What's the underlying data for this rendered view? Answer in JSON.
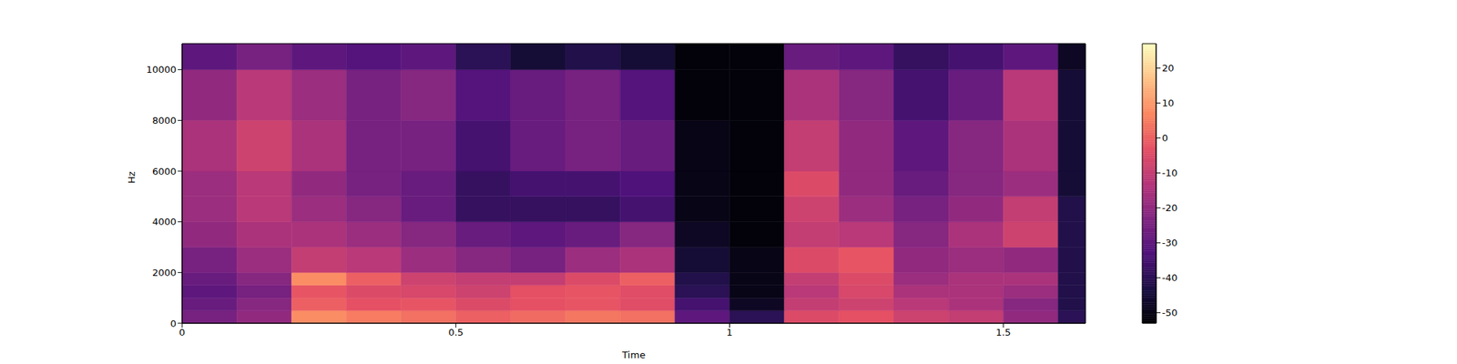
{
  "chart_data": {
    "type": "heatmap",
    "x_label": "Time",
    "y_label": "Hz",
    "xlim": [
      0,
      1.65
    ],
    "ylim": [
      0,
      11025
    ],
    "xticks": [
      0,
      0.5,
      1,
      1.5
    ],
    "yticks": [
      0,
      2000,
      4000,
      6000,
      8000,
      10000
    ],
    "color": "magma",
    "x_edges": [
      0,
      0.1,
      0.2,
      0.3,
      0.4,
      0.5,
      0.6,
      0.7,
      0.8,
      0.9,
      1.0,
      1.1,
      1.2,
      1.3,
      1.4,
      1.5,
      1.6,
      1.65
    ],
    "y_edges": [
      0,
      500,
      1000,
      1500,
      2000,
      3000,
      4000,
      5000,
      6000,
      8000,
      10000,
      11025
    ],
    "cells": [
      [
        -25,
        -20,
        8,
        5,
        3,
        0,
        2,
        4,
        3,
        -30,
        -40,
        -5,
        -3,
        -8,
        -10,
        -20,
        -40
      ],
      [
        -28,
        -22,
        0,
        -3,
        -2,
        -5,
        -3,
        -2,
        -4,
        -35,
        -48,
        -10,
        -8,
        -12,
        -15,
        -22,
        -42
      ],
      [
        -30,
        -25,
        -2,
        -5,
        -6,
        -8,
        -3,
        -2,
        -4,
        -40,
        -50,
        -12,
        -6,
        -15,
        -15,
        -18,
        -42
      ],
      [
        -28,
        -22,
        8,
        0,
        -8,
        -10,
        -10,
        -5,
        0,
        -42,
        -50,
        -10,
        -5,
        -18,
        -15,
        -15,
        -42
      ],
      [
        -25,
        -18,
        -10,
        -12,
        -18,
        -22,
        -25,
        -18,
        -15,
        -45,
        -50,
        -5,
        -2,
        -20,
        -18,
        -20,
        -42
      ],
      [
        -20,
        -15,
        -15,
        -18,
        -22,
        -28,
        -30,
        -28,
        -22,
        -48,
        -52,
        -10,
        -12,
        -22,
        -15,
        -8,
        -42
      ],
      [
        -18,
        -12,
        -18,
        -22,
        -28,
        -38,
        -38,
        -38,
        -35,
        -50,
        -52,
        -8,
        -18,
        -25,
        -20,
        -10,
        -42
      ],
      [
        -18,
        -12,
        -20,
        -25,
        -28,
        -38,
        -35,
        -35,
        -33,
        -50,
        -52,
        -5,
        -20,
        -28,
        -22,
        -18,
        -45
      ],
      [
        -15,
        -8,
        -15,
        -25,
        -25,
        -35,
        -28,
        -25,
        -28,
        -50,
        -52,
        -10,
        -20,
        -30,
        -22,
        -15,
        -45
      ],
      [
        -20,
        -12,
        -18,
        -25,
        -22,
        -32,
        -28,
        -25,
        -32,
        -52,
        -52,
        -15,
        -22,
        -35,
        -28,
        -12,
        -45
      ],
      [
        -30,
        -25,
        -30,
        -32,
        -30,
        -40,
        -45,
        -42,
        -45,
        -52,
        -52,
        -28,
        -30,
        -38,
        -35,
        -30,
        -48
      ]
    ],
    "colorbar": {
      "lim": [
        -53,
        27
      ],
      "ticks": [
        -50,
        -40,
        -30,
        -20,
        -10,
        0,
        10,
        20
      ]
    }
  }
}
